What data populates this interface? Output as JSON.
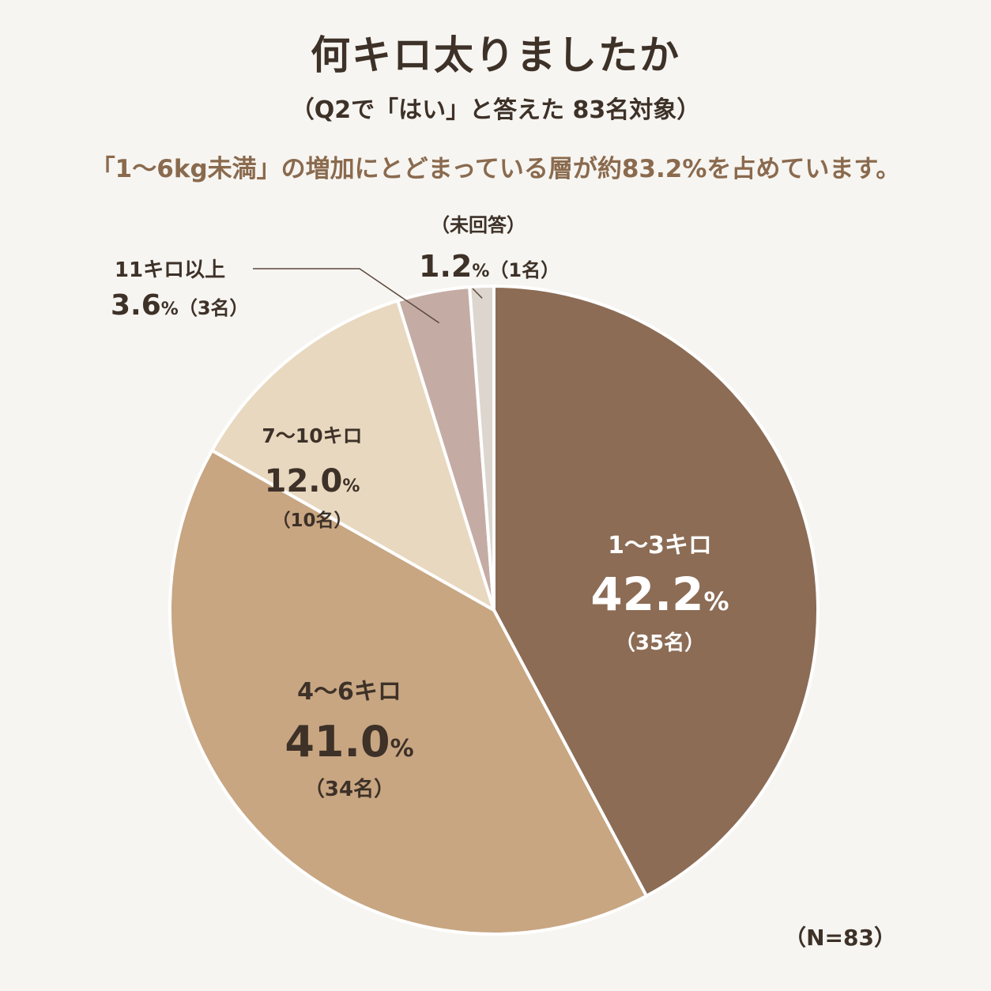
{
  "title": "何キロ太りましたか",
  "subtitle": "（Q2で「はい」と答えた 83名対象）",
  "note": "「1〜6kg未満」の増加にとどまっている層が約83.2%を占めています。",
  "sample_size": "（N=83）",
  "colors": {
    "background": "#f7f5f1",
    "slice_1_3": "#8c6c55",
    "slice_4_6": "#c8a682",
    "slice_7_10": "#e8d8bf",
    "slice_11plus": "#c4aca4",
    "slice_noanswer": "#dcd6cf",
    "text_dark": "#3d3128",
    "text_accent": "#8a6a4e"
  },
  "chart_data": {
    "type": "pie",
    "title": "何キロ太りましたか",
    "start": "12 o'clock, clockwise",
    "slices": [
      {
        "category": "1〜3キロ",
        "percent": 42.2,
        "pct_label": "42.2",
        "count": 35,
        "count_label": "（35名）",
        "color": "#8c6c55"
      },
      {
        "category": "4〜6キロ",
        "percent": 41.0,
        "pct_label": "41.0",
        "count": 34,
        "count_label": "（34名）",
        "color": "#c8a682"
      },
      {
        "category": "7〜10キロ",
        "percent": 12.0,
        "pct_label": "12.0",
        "count": 10,
        "count_label": "（10名）",
        "color": "#e8d8bf"
      },
      {
        "category": "11キロ以上",
        "percent": 3.6,
        "pct_label": "3.6",
        "count": 3,
        "count_label": "（3名）",
        "color": "#c4aca4"
      },
      {
        "category": "（未回答）",
        "percent": 1.2,
        "pct_label": "1.2",
        "count": 1,
        "count_label": "（1名）",
        "color": "#dcd6cf"
      }
    ],
    "percent_sign": "%"
  }
}
